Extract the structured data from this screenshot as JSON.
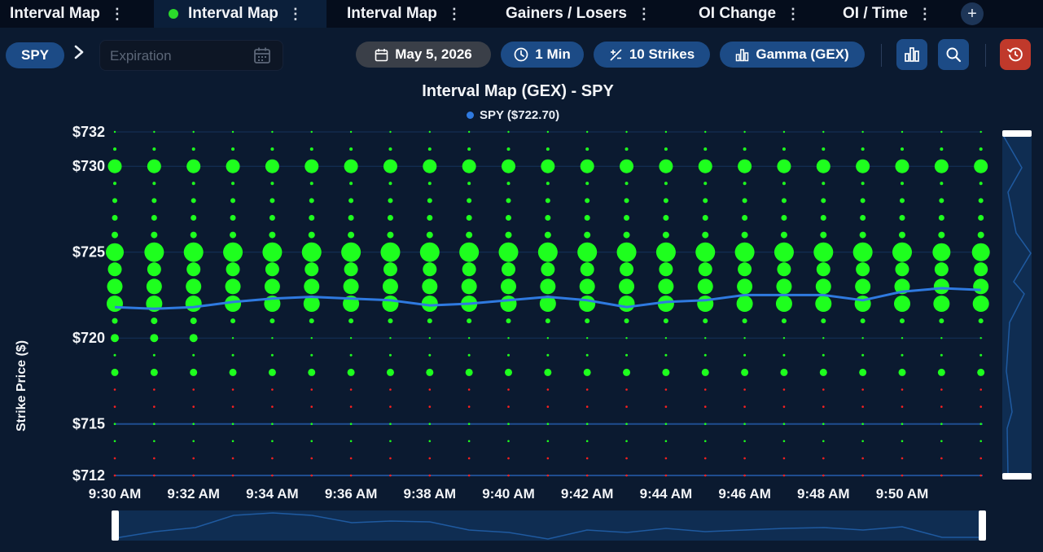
{
  "tabs": [
    {
      "label": "Interval Map",
      "active": false
    },
    {
      "label": "Interval Map",
      "active": true
    },
    {
      "label": "Interval Map",
      "active": false
    },
    {
      "label": "Gainers / Losers",
      "active": false
    },
    {
      "label": "OI Change",
      "active": false
    },
    {
      "label": "OI / Time",
      "active": false
    }
  ],
  "tab_menu_glyph": "⋮",
  "add_tab_glyph": "+",
  "toolbar": {
    "symbol": "SPY",
    "expiration_placeholder": "Expiration",
    "date": "May 5, 2026",
    "interval": "1 Min",
    "strikes": "10 Strikes",
    "metric": "Gamma (GEX)"
  },
  "icons": {
    "calendar": "calendar-icon",
    "clock": "clock-icon",
    "strikes": "plus-minus-icon",
    "metric": "bar-chart-icon",
    "chart_type_button": "bar-chart-icon",
    "zoom_button": "search-icon",
    "reset_button": "reset-icon"
  },
  "colors": {
    "positive_bubble": "#1eff1e",
    "negative_bubble": "#ff2020",
    "price_line": "#2f7ae0",
    "reset_button": "#c0392b",
    "pill_blue": "#1c4b86"
  },
  "chart_data": {
    "type": "scatter",
    "title": "Interval Map (GEX) - SPY",
    "legend": "SPY ($722.70)",
    "ylabel": "Strike Price ($)",
    "xlabel": "",
    "ylim": [
      712,
      732
    ],
    "yticks": [
      {
        "value": 732,
        "label": "$732"
      },
      {
        "value": 730,
        "label": "$730"
      },
      {
        "value": 725,
        "label": "$725"
      },
      {
        "value": 720,
        "label": "$720"
      },
      {
        "value": 715,
        "label": "$715"
      },
      {
        "value": 712,
        "label": "$712"
      }
    ],
    "x": [
      "9:30 AM",
      "9:31 AM",
      "9:32 AM",
      "9:33 AM",
      "9:34 AM",
      "9:35 AM",
      "9:36 AM",
      "9:37 AM",
      "9:38 AM",
      "9:39 AM",
      "9:40 AM",
      "9:41 AM",
      "9:42 AM",
      "9:43 AM",
      "9:44 AM",
      "9:45 AM",
      "9:46 AM",
      "9:47 AM",
      "9:48 AM",
      "9:49 AM",
      "9:50 AM",
      "9:51 AM",
      "9:52 AM"
    ],
    "xticks": [
      "9:30 AM",
      "9:32 AM",
      "9:34 AM",
      "9:36 AM",
      "9:38 AM",
      "9:40 AM",
      "9:42 AM",
      "9:44 AM",
      "9:46 AM",
      "9:48 AM",
      "9:50 AM"
    ],
    "strikes": [
      732,
      731,
      730,
      729,
      728,
      727,
      726,
      725,
      724,
      723,
      722,
      721,
      720,
      719,
      718,
      717,
      716,
      715,
      714,
      713,
      712
    ],
    "series": [
      {
        "name": "SPY",
        "values": [
          721.8,
          721.7,
          721.8,
          722.1,
          722.3,
          722.4,
          722.3,
          722.2,
          721.9,
          722.0,
          722.2,
          722.4,
          722.2,
          721.8,
          722.1,
          722.2,
          722.5,
          722.5,
          722.5,
          722.2,
          722.7,
          722.9,
          722.8
        ]
      }
    ],
    "bubbles_by_strike": [
      {
        "strike": 732,
        "size": 1.2,
        "sign": "positive"
      },
      {
        "strike": 731,
        "size": 2,
        "sign": "positive"
      },
      {
        "strike": 730,
        "size": 8.5,
        "sign": "positive"
      },
      {
        "strike": 729,
        "size": 2,
        "sign": "positive"
      },
      {
        "strike": 728,
        "size": 3,
        "sign": "positive"
      },
      {
        "strike": 727,
        "size": 3.5,
        "sign": "positive"
      },
      {
        "strike": 726,
        "size": 4,
        "sign": "positive"
      },
      {
        "strike": 725,
        "size": 12,
        "sign": "positive"
      },
      {
        "strike": 724,
        "size": 8.5,
        "sign": "positive"
      },
      {
        "strike": 723,
        "size": 9.5,
        "sign": "positive"
      },
      {
        "strike": 722,
        "size": 10,
        "sign": "positive"
      },
      {
        "strike": 721,
        "size": 3,
        "sign": "positive"
      },
      {
        "strike": 720,
        "size": 2,
        "sign": "positive"
      },
      {
        "strike": 719,
        "size": 1.5,
        "sign": "positive"
      },
      {
        "strike": 718,
        "size": 4.5,
        "sign": "positive"
      },
      {
        "strike": 717,
        "size": 1.3,
        "sign": "negative"
      },
      {
        "strike": 716,
        "size": 1.3,
        "sign": "negative"
      },
      {
        "strike": 715,
        "size": 1.3,
        "sign": "positive"
      },
      {
        "strike": 714,
        "size": 1.3,
        "sign": "positive"
      },
      {
        "strike": 713,
        "size": 1.3,
        "sign": "negative"
      },
      {
        "strike": 712,
        "size": 1.3,
        "sign": "negative"
      }
    ],
    "grid": true,
    "legend_position": "top-center"
  }
}
